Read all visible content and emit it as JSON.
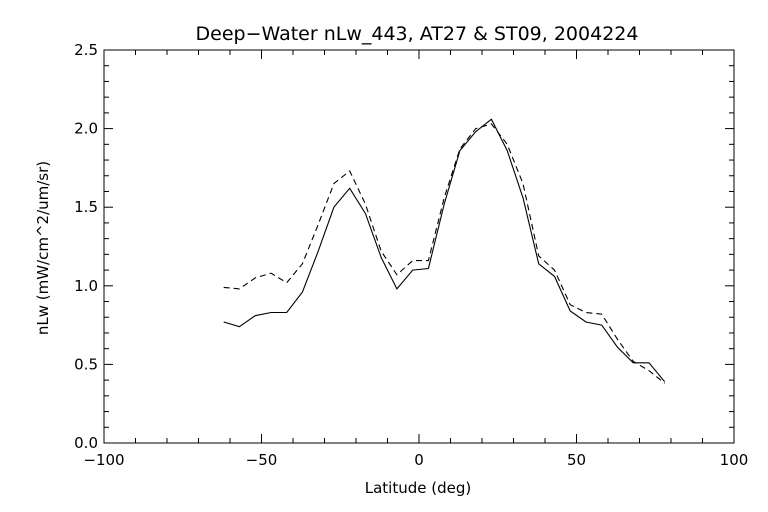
{
  "chart_data": {
    "type": "line",
    "title": "Deep−Water nLw_443, AT27 & ST09, 2004224",
    "xlabel": "Latitude (deg)",
    "ylabel": "nLw (mW/cm^2/um/sr)",
    "xlim": [
      -100,
      100
    ],
    "ylim": [
      0.0,
      2.5
    ],
    "xticks": [
      -100,
      -50,
      0,
      50,
      100
    ],
    "xtick_labels": [
      "−100",
      "−50",
      "0",
      "50",
      "100"
    ],
    "yticks": [
      0.0,
      0.5,
      1.0,
      1.5,
      2.0,
      2.5
    ],
    "ytick_labels": [
      "0.0",
      "0.5",
      "1.0",
      "1.5",
      "2.0",
      "2.5"
    ],
    "grid": false,
    "series": [
      {
        "style": "solid",
        "x": [
          -62,
          -57,
          -52,
          -47,
          -42,
          -37,
          -32,
          -27,
          -22,
          -17,
          -12,
          -7,
          -2,
          3,
          8,
          13,
          18,
          23,
          28,
          33,
          38,
          43,
          48,
          53,
          58,
          63,
          68,
          73,
          78
        ],
        "y": [
          0.77,
          0.74,
          0.81,
          0.83,
          0.83,
          0.96,
          1.22,
          1.5,
          1.62,
          1.46,
          1.18,
          0.98,
          1.1,
          1.11,
          1.52,
          1.86,
          1.98,
          2.06,
          1.86,
          1.56,
          1.14,
          1.06,
          0.84,
          0.77,
          0.75,
          0.61,
          0.51,
          0.51,
          0.39
        ]
      },
      {
        "style": "dashed",
        "x": [
          -62,
          -57,
          -52,
          -47,
          -42,
          -37,
          -32,
          -27,
          -22,
          -17,
          -12,
          -7,
          -2,
          3,
          8,
          13,
          18,
          23,
          28,
          33,
          38,
          43,
          48,
          53,
          58,
          63,
          68,
          73,
          78
        ],
        "y": [
          0.99,
          0.98,
          1.05,
          1.08,
          1.02,
          1.14,
          1.39,
          1.65,
          1.73,
          1.52,
          1.22,
          1.07,
          1.16,
          1.16,
          1.56,
          1.87,
          2.0,
          2.03,
          1.9,
          1.65,
          1.19,
          1.1,
          0.88,
          0.83,
          0.82,
          0.66,
          0.52,
          0.46,
          0.38
        ]
      }
    ]
  }
}
